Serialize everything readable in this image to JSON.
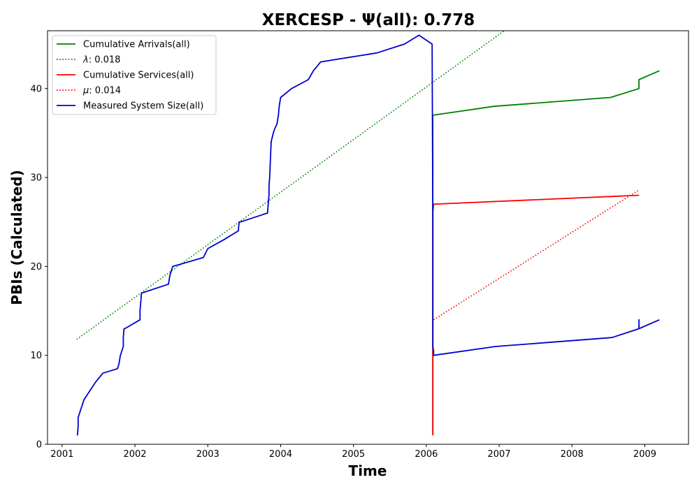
{
  "chart_data": {
    "type": "line",
    "title": "XERCESP -  Ψ(all): 0.778",
    "xlabel": "Time",
    "ylabel": "PBIs (Calculated)",
    "xlim": [
      2000.8,
      2009.6
    ],
    "ylim": [
      0,
      46.5
    ],
    "x_ticks": [
      2001,
      2002,
      2003,
      2004,
      2005,
      2006,
      2007,
      2008,
      2009
    ],
    "y_ticks": [
      0,
      10,
      20,
      30,
      40
    ],
    "grid": false,
    "legend_position": "top-left",
    "series": [
      {
        "name": "Cumulative Arrivals(all)",
        "label_html": "Cumulative Arrivals(all)",
        "color": "#008000",
        "style": "solid",
        "x": [
          2006.09,
          2006.09,
          2006.93,
          2008.53,
          2008.92,
          2008.92,
          2009.2
        ],
        "y": [
          1,
          37,
          38,
          39,
          40,
          41,
          42
        ]
      },
      {
        "name": "λ: 0.018",
        "label_prefix": "λ",
        "label_suffix": ": 0.018",
        "color": "#008000",
        "style": "dotted",
        "x": [
          2001.2,
          2007.07
        ],
        "y": [
          11.8,
          46.5
        ]
      },
      {
        "name": "Cumulative Services(all)",
        "label_html": "Cumulative Services(all)",
        "color": "#ff0000",
        "style": "solid",
        "x": [
          2006.09,
          2006.09,
          2006.1,
          2008.92
        ],
        "y": [
          1,
          26,
          27,
          28
        ]
      },
      {
        "name": "μ: 0.014",
        "label_prefix": "μ",
        "label_suffix": ": 0.014",
        "color": "#ff0000",
        "style": "dotted",
        "x": [
          2006.1,
          2008.92
        ],
        "y": [
          14,
          28.6
        ]
      },
      {
        "name": "Measured System Size(all)",
        "label_html": "Measured System Size(all)",
        "color": "#0000cc",
        "style": "solid",
        "x": [
          2001.21,
          2001.22,
          2001.22,
          2001.26,
          2001.3,
          2001.38,
          2001.46,
          2001.56,
          2001.76,
          2001.78,
          2001.8,
          2001.84,
          2001.84,
          2001.85,
          2001.86,
          2002.07,
          2002.07,
          2002.08,
          2002.09,
          2002.46,
          2002.47,
          2002.48,
          2002.5,
          2002.52,
          2002.94,
          2003.0,
          2003.22,
          2003.42,
          2003.43,
          2003.45,
          2003.82,
          2003.83,
          2003.84,
          2003.84,
          2003.85,
          2003.87,
          2003.9,
          2003.92,
          2003.95,
          2003.97,
          2003.98,
          2004.0,
          2004.15,
          2004.38,
          2004.45,
          2004.55,
          2005.32,
          2005.7,
          2005.9,
          2006.08,
          2006.08,
          2006.09,
          2006.09,
          2006.1,
          2006.1,
          2006.95,
          2008.55,
          2008.92,
          2008.92,
          2008.92,
          2009.2
        ],
        "y": [
          1,
          2,
          3,
          4,
          5,
          6,
          7,
          8,
          8.5,
          9,
          10,
          11,
          12,
          13,
          13,
          14,
          15,
          16,
          17,
          18,
          18.5,
          19,
          19.5,
          20,
          21,
          22,
          23,
          24,
          25,
          25,
          26,
          27,
          28,
          29,
          30,
          34,
          35,
          35.5,
          36,
          37,
          38,
          39,
          40,
          41,
          42,
          43,
          44,
          45,
          46,
          45,
          45,
          25,
          11,
          10.5,
          10,
          11,
          12,
          13,
          14,
          13,
          14
        ]
      }
    ]
  }
}
